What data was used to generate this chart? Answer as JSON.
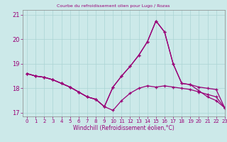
{
  "xlabel": "Windchill (Refroidissement éolien,°C)",
  "xlim": [
    -0.5,
    23
  ],
  "ylim": [
    16.85,
    21.2
  ],
  "yticks": [
    17,
    18,
    19,
    20,
    21
  ],
  "xticks": [
    0,
    1,
    2,
    3,
    4,
    5,
    6,
    7,
    8,
    9,
    10,
    11,
    12,
    13,
    14,
    15,
    16,
    17,
    18,
    19,
    20,
    21,
    22,
    23
  ],
  "bg_color": "#cce9e9",
  "grid_color": "#aad4d4",
  "line_color": "#990077",
  "series": [
    {
      "x": [
        0,
        1,
        2,
        3,
        4,
        5,
        6,
        7,
        8,
        9,
        10,
        11,
        12,
        13,
        14,
        15,
        16,
        17,
        18,
        19,
        20,
        21,
        22,
        23
      ],
      "y": [
        18.6,
        18.5,
        18.45,
        18.35,
        18.2,
        18.05,
        17.85,
        17.65,
        17.55,
        17.25,
        17.1,
        17.5,
        17.8,
        18.0,
        18.1,
        18.05,
        18.1,
        18.05,
        18.0,
        17.95,
        17.85,
        17.75,
        17.65,
        17.2
      ]
    },
    {
      "x": [
        0,
        1,
        2,
        3,
        4,
        5,
        6,
        7,
        8,
        9,
        10,
        11,
        12,
        13,
        14,
        15,
        16,
        17,
        18,
        19,
        20,
        21,
        22,
        23
      ],
      "y": [
        18.6,
        18.5,
        18.45,
        18.35,
        18.2,
        18.05,
        17.85,
        17.65,
        17.55,
        17.25,
        18.05,
        18.5,
        18.9,
        19.35,
        19.9,
        20.75,
        20.3,
        19.0,
        18.2,
        18.15,
        18.05,
        18.0,
        17.95,
        17.2
      ]
    },
    {
      "x": [
        0,
        1,
        2,
        3,
        4,
        5,
        6,
        7,
        8,
        9,
        10,
        11,
        12,
        13,
        14,
        15,
        16,
        17,
        18,
        19,
        20,
        21,
        22,
        23
      ],
      "y": [
        18.6,
        18.5,
        18.45,
        18.35,
        18.2,
        18.05,
        17.85,
        17.65,
        17.55,
        17.25,
        18.05,
        18.5,
        18.9,
        19.35,
        19.9,
        20.75,
        20.3,
        19.0,
        18.2,
        18.15,
        17.9,
        17.65,
        17.5,
        17.2
      ]
    }
  ]
}
